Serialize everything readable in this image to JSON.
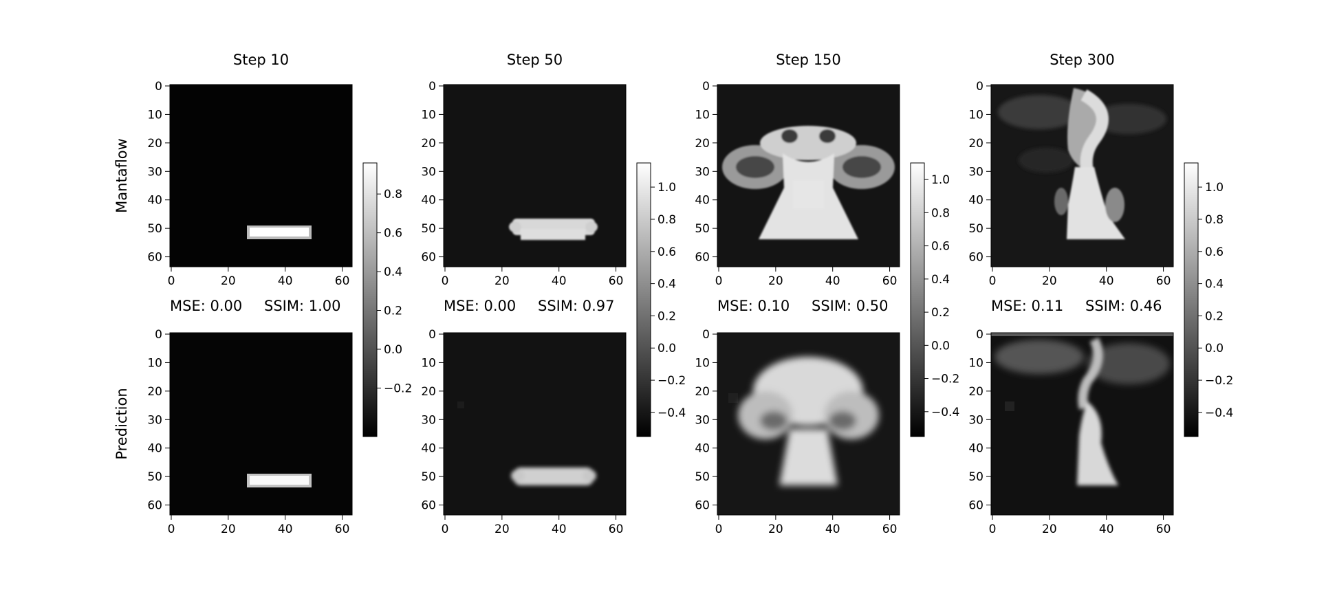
{
  "figure": {
    "row_labels": [
      "Mantaflow",
      "Prediction"
    ]
  },
  "chart_data": [
    {
      "type": "heatmap",
      "title": "Step 10",
      "row": "Mantaflow",
      "panel": 0,
      "xlim": [
        0,
        63
      ],
      "ylim": [
        0,
        63
      ],
      "xticks": [
        "0",
        "20",
        "40",
        "60"
      ],
      "yticks": [
        "0",
        "10",
        "20",
        "30",
        "40",
        "50",
        "60"
      ],
      "colorbar": {
        "min": -0.45,
        "max": 0.96,
        "ticks": [
          0.8,
          0.6,
          0.4,
          0.2,
          0.0,
          -0.2
        ],
        "tick_labels": [
          "0.8",
          "0.6",
          "0.4",
          "0.2",
          "0.0",
          "−0.2"
        ]
      },
      "metrics": {
        "mse": "MSE: 0.00",
        "ssim": "SSIM: 1.00"
      }
    },
    {
      "type": "heatmap",
      "title": "",
      "row": "Prediction",
      "panel": 0,
      "xlim": [
        0,
        63
      ],
      "ylim": [
        0,
        63
      ],
      "xticks": [
        "0",
        "20",
        "40",
        "60"
      ],
      "yticks": [
        "0",
        "10",
        "20",
        "30",
        "40",
        "50",
        "60"
      ]
    },
    {
      "type": "heatmap",
      "title": "Step 50",
      "row": "Mantaflow",
      "panel": 1,
      "xlim": [
        0,
        63
      ],
      "ylim": [
        0,
        63
      ],
      "xticks": [
        "0",
        "20",
        "40",
        "60"
      ],
      "yticks": [
        "0",
        "10",
        "20",
        "30",
        "40",
        "50",
        "60"
      ],
      "colorbar": {
        "min": -0.55,
        "max": 1.15,
        "ticks": [
          1.0,
          0.8,
          0.6,
          0.4,
          0.2,
          0.0,
          -0.2,
          -0.4
        ],
        "tick_labels": [
          "1.0",
          "0.8",
          "0.6",
          "0.4",
          "0.2",
          "0.0",
          "−0.2",
          "−0.4"
        ]
      },
      "metrics": {
        "mse": "MSE: 0.00",
        "ssim": "SSIM: 0.97"
      }
    },
    {
      "type": "heatmap",
      "title": "",
      "row": "Prediction",
      "panel": 1,
      "xlim": [
        0,
        63
      ],
      "ylim": [
        0,
        63
      ],
      "xticks": [
        "0",
        "20",
        "40",
        "60"
      ],
      "yticks": [
        "0",
        "10",
        "20",
        "30",
        "40",
        "50",
        "60"
      ]
    },
    {
      "type": "heatmap",
      "title": "Step 150",
      "row": "Mantaflow",
      "panel": 2,
      "xlim": [
        0,
        63
      ],
      "ylim": [
        0,
        63
      ],
      "xticks": [
        "0",
        "20",
        "40",
        "60"
      ],
      "yticks": [
        "0",
        "10",
        "20",
        "30",
        "40",
        "50",
        "60"
      ],
      "colorbar": {
        "min": -0.55,
        "max": 1.1,
        "ticks": [
          1.0,
          0.8,
          0.6,
          0.4,
          0.2,
          0.0,
          -0.2,
          -0.4
        ],
        "tick_labels": [
          "1.0",
          "0.8",
          "0.6",
          "0.4",
          "0.2",
          "0.0",
          "−0.2",
          "−0.4"
        ]
      },
      "metrics": {
        "mse": "MSE: 0.10",
        "ssim": "SSIM: 0.50"
      }
    },
    {
      "type": "heatmap",
      "title": "",
      "row": "Prediction",
      "panel": 2,
      "xlim": [
        0,
        63
      ],
      "ylim": [
        0,
        63
      ],
      "xticks": [
        "0",
        "20",
        "40",
        "60"
      ],
      "yticks": [
        "0",
        "10",
        "20",
        "30",
        "40",
        "50",
        "60"
      ]
    },
    {
      "type": "heatmap",
      "title": "Step 300",
      "row": "Mantaflow",
      "panel": 3,
      "xlim": [
        0,
        63
      ],
      "ylim": [
        0,
        63
      ],
      "xticks": [
        "0",
        "20",
        "40",
        "60"
      ],
      "yticks": [
        "0",
        "10",
        "20",
        "30",
        "40",
        "50",
        "60"
      ],
      "colorbar": {
        "min": -0.55,
        "max": 1.15,
        "ticks": [
          1.0,
          0.8,
          0.6,
          0.4,
          0.2,
          0.0,
          -0.2,
          -0.4
        ],
        "tick_labels": [
          "1.0",
          "0.8",
          "0.6",
          "0.4",
          "0.2",
          "0.0",
          "−0.2",
          "−0.4"
        ]
      },
      "metrics": {
        "mse": "MSE: 0.11",
        "ssim": "SSIM: 0.46"
      }
    },
    {
      "type": "heatmap",
      "title": "",
      "row": "Prediction",
      "panel": 3,
      "xlim": [
        0,
        63
      ],
      "ylim": [
        0,
        63
      ],
      "xticks": [
        "0",
        "20",
        "40",
        "60"
      ],
      "yticks": [
        "0",
        "10",
        "20",
        "30",
        "40",
        "50",
        "60"
      ]
    }
  ]
}
